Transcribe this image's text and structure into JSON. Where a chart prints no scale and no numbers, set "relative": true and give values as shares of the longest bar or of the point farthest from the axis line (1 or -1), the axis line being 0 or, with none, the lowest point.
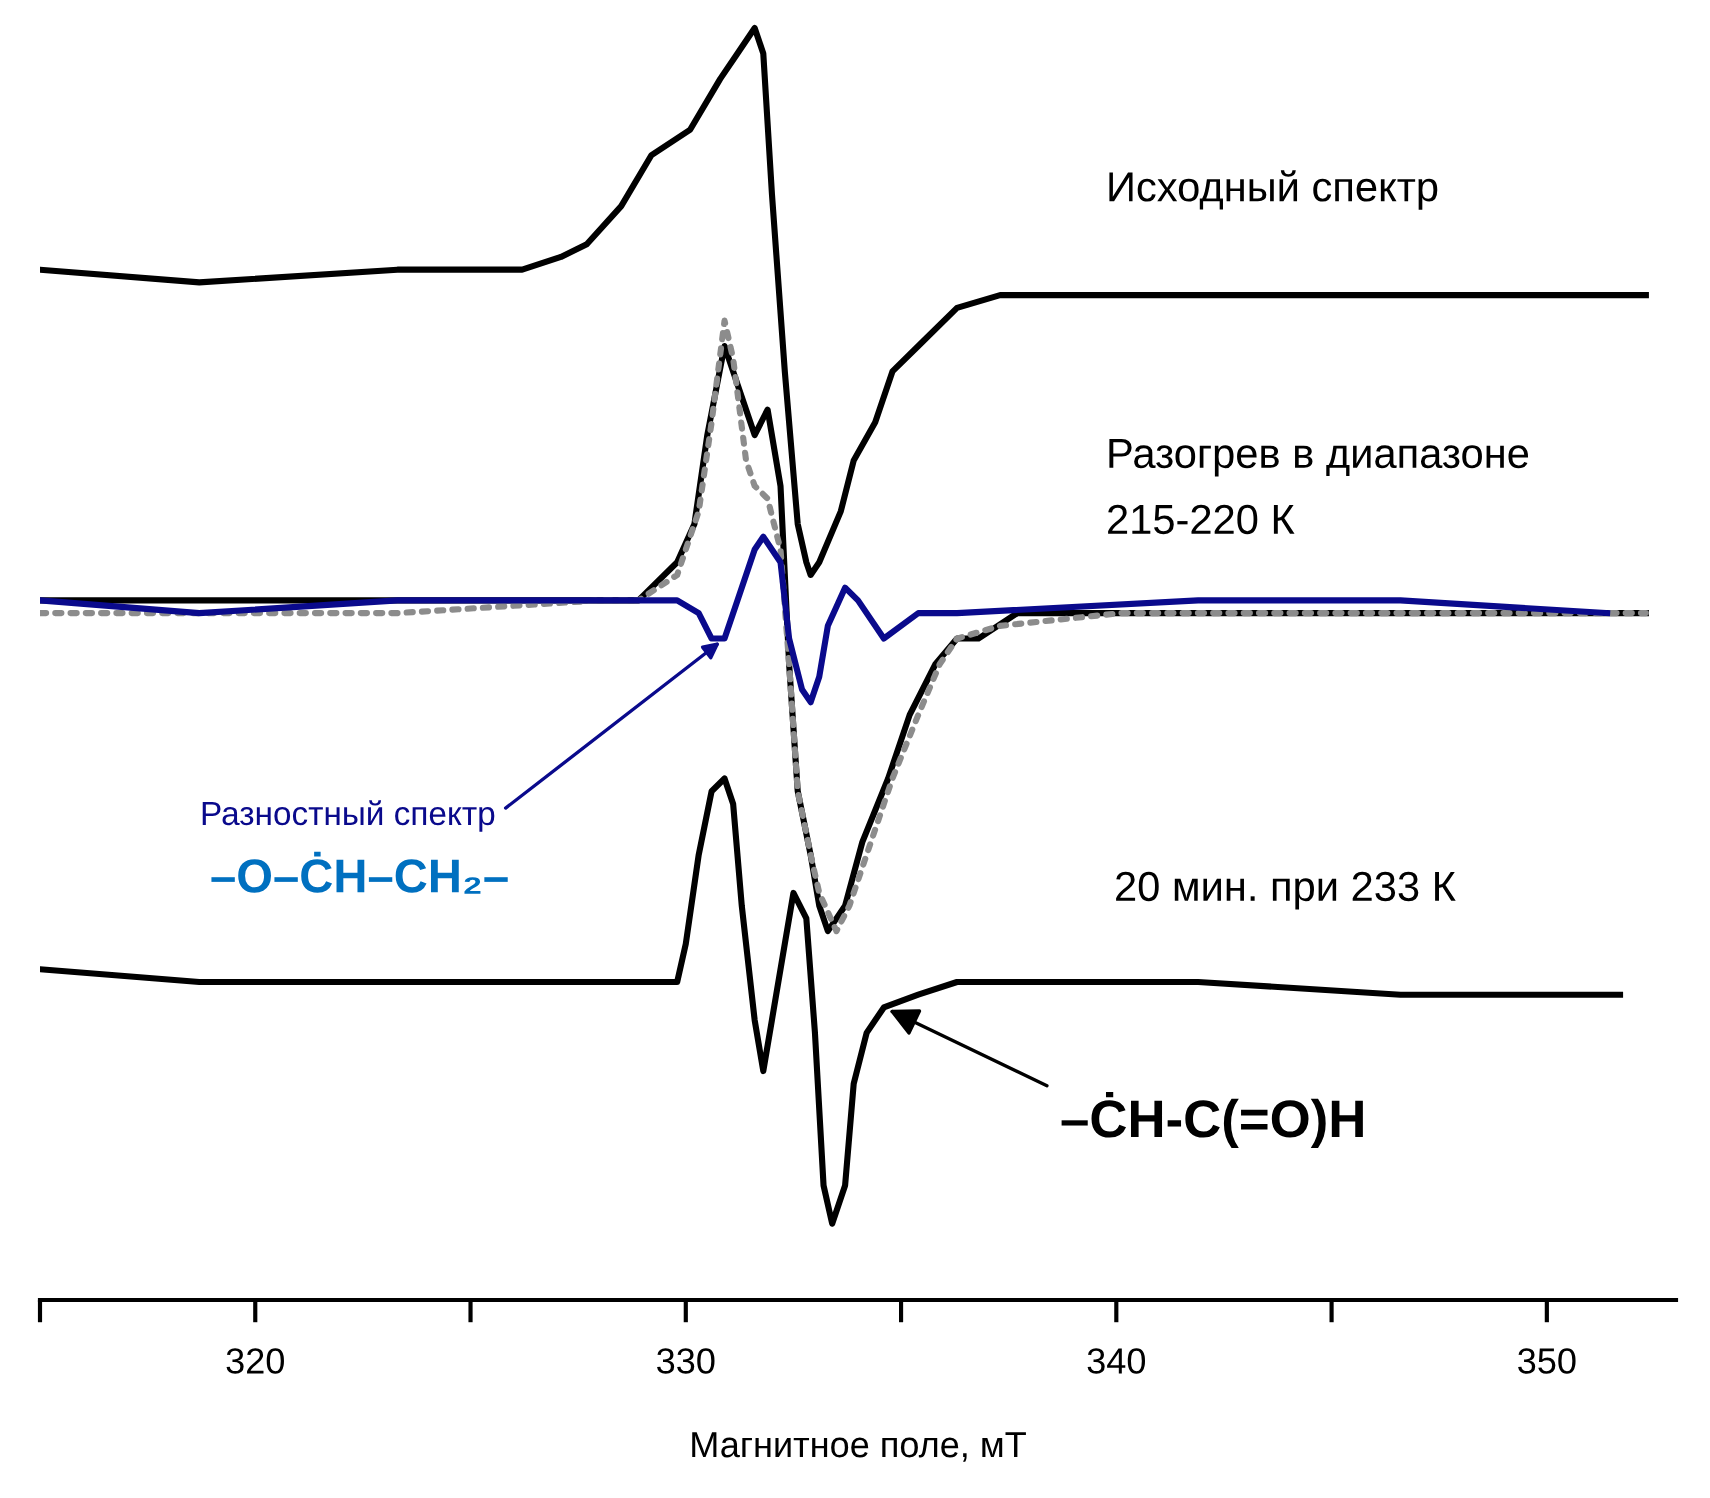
{
  "chart_data": {
    "type": "line",
    "relative": true,
    "xlabel": "Магнитное поле, мТ",
    "xlim": [
      315,
      353
    ],
    "xticks": [
      {
        "value": 315,
        "label": null
      },
      320,
      {
        "value": 325,
        "label": null
      },
      330,
      {
        "value": 335,
        "label": null
      },
      340,
      {
        "value": 345,
        "label": null
      },
      350
    ],
    "tick_labels": "x",
    "grid": false,
    "legend": false,
    "marker": "none",
    "series": [
      {
        "name": "Исходный спектр",
        "color": "#000000",
        "line_style": "solid",
        "x": [
          315.0,
          318.7,
          323.3,
          325.2,
          326.2,
          327.1,
          327.7,
          328.5,
          329.2,
          330.1,
          330.8,
          331.2,
          331.6,
          331.8,
          332.0,
          332.3,
          332.6,
          332.8,
          332.9,
          333.1,
          333.6,
          333.9,
          334.4,
          334.8,
          335.4,
          336.3,
          337.3,
          340.1,
          344.2,
          352.3
        ],
        "values": [
          0.81,
          0.8,
          0.81,
          0.81,
          0.81,
          0.82,
          0.83,
          0.86,
          0.9,
          0.92,
          0.96,
          0.98,
          1.0,
          0.98,
          0.87,
          0.73,
          0.61,
          0.58,
          0.57,
          0.58,
          0.62,
          0.66,
          0.69,
          0.73,
          0.75,
          0.78,
          0.79,
          0.79,
          0.79,
          0.79
        ]
      },
      {
        "name": "Разогрев в диапазоне\n215-220 К",
        "color": "#000000",
        "line_style": "solid",
        "x": [
          315.0,
          323.3,
          328.0,
          328.9,
          329.8,
          330.2,
          330.5,
          330.9,
          331.2,
          331.6,
          331.9,
          332.2,
          332.4,
          332.6,
          332.9,
          333.1,
          333.3,
          333.7,
          334.1,
          334.7,
          335.2,
          335.8,
          336.3,
          336.8,
          337.7,
          341.9,
          352.3
        ],
        "values": [
          0.55,
          0.55,
          0.55,
          0.55,
          0.58,
          0.61,
          0.68,
          0.75,
          0.72,
          0.68,
          0.7,
          0.64,
          0.5,
          0.4,
          0.35,
          0.31,
          0.29,
          0.31,
          0.36,
          0.41,
          0.46,
          0.5,
          0.52,
          0.52,
          0.54,
          0.54,
          0.54
        ]
      },
      {
        "color": "#8c8c8c",
        "line_style": "dotted",
        "x": [
          315.0,
          323.3,
          328.0,
          328.9,
          329.8,
          330.3,
          330.6,
          330.9,
          331.1,
          331.4,
          331.6,
          331.9,
          332.2,
          332.4,
          332.6,
          332.9,
          333.1,
          333.5,
          333.8,
          334.3,
          334.8,
          335.4,
          335.9,
          336.3,
          337.3,
          340.1,
          352.3
        ],
        "values": [
          0.54,
          0.54,
          0.55,
          0.55,
          0.57,
          0.62,
          0.69,
          0.77,
          0.74,
          0.66,
          0.64,
          0.63,
          0.59,
          0.5,
          0.4,
          0.35,
          0.32,
          0.29,
          0.31,
          0.36,
          0.41,
          0.46,
          0.5,
          0.52,
          0.53,
          0.54,
          0.54
        ]
      },
      {
        "name": "Разностный спектр",
        "color": "#0a0a8c",
        "line_style": "solid",
        "x": [
          315.0,
          318.7,
          323.3,
          326.6,
          328.0,
          329.8,
          330.3,
          330.6,
          330.9,
          331.2,
          331.6,
          331.8,
          332.2,
          332.4,
          332.7,
          332.9,
          333.1,
          333.3,
          333.7,
          334.0,
          334.6,
          335.4,
          336.3,
          341.9,
          346.6,
          351.4
        ],
        "values": [
          0.55,
          0.54,
          0.55,
          0.55,
          0.55,
          0.55,
          0.54,
          0.52,
          0.52,
          0.55,
          0.59,
          0.6,
          0.58,
          0.52,
          0.48,
          0.47,
          0.49,
          0.53,
          0.56,
          0.55,
          0.52,
          0.54,
          0.54,
          0.55,
          0.55,
          0.54
        ]
      },
      {
        "name": "20 мин. при 233 К",
        "color": "#000000",
        "line_style": "solid",
        "x": [
          315.0,
          318.7,
          323.3,
          326.1,
          328.0,
          329.8,
          330.0,
          330.3,
          330.6,
          330.9,
          331.1,
          331.3,
          331.6,
          331.8,
          332.0,
          332.3,
          332.5,
          332.8,
          333.0,
          333.2,
          333.4,
          333.7,
          333.9,
          334.2,
          334.6,
          335.4,
          336.3,
          341.9,
          346.6,
          351.7
        ],
        "values": [
          0.26,
          0.25,
          0.25,
          0.25,
          0.25,
          0.25,
          0.28,
          0.35,
          0.4,
          0.41,
          0.39,
          0.31,
          0.22,
          0.18,
          0.22,
          0.28,
          0.32,
          0.3,
          0.21,
          0.09,
          0.06,
          0.09,
          0.17,
          0.21,
          0.23,
          0.24,
          0.25,
          0.25,
          0.24,
          0.24
        ]
      }
    ],
    "annotations": [
      "–O–ĊH–CH₂–",
      "–ĊH-C(=O)H"
    ]
  }
}
